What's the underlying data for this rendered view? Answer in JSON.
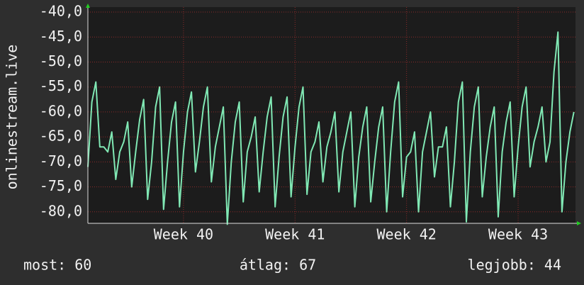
{
  "chart_data": {
    "type": "line",
    "ylabel": "onlinestream.live",
    "xlim": [
      0,
      30.6
    ],
    "xticks": [
      {
        "value": 6,
        "label": "Week 40"
      },
      {
        "value": 13,
        "label": "Week 41"
      },
      {
        "value": 20,
        "label": "Week 42"
      },
      {
        "value": 27,
        "label": "Week 43"
      }
    ],
    "ylim": [
      -82.3,
      -39.0
    ],
    "yticks": [
      {
        "value": -40,
        "label": "-40,0"
      },
      {
        "value": -45,
        "label": "-45,0"
      },
      {
        "value": -50,
        "label": "-50,0"
      },
      {
        "value": -55,
        "label": "-55,0"
      },
      {
        "value": -60,
        "label": "-60,0"
      },
      {
        "value": -65,
        "label": "-65,0"
      },
      {
        "value": -70,
        "label": "-70,0"
      },
      {
        "value": -75,
        "label": "-75,0"
      },
      {
        "value": -80,
        "label": "-80,0"
      }
    ],
    "grid": true,
    "series": [
      {
        "color": "#80e8b4",
        "x": [
          0,
          0.25,
          0.5,
          0.75,
          1,
          1.25,
          1.5,
          1.75,
          2,
          2.25,
          2.5,
          2.75,
          3,
          3.25,
          3.5,
          3.75,
          4,
          4.25,
          4.5,
          4.75,
          5,
          5.25,
          5.5,
          5.75,
          6,
          6.25,
          6.5,
          6.75,
          7,
          7.25,
          7.5,
          7.75,
          8,
          8.25,
          8.5,
          8.75,
          9,
          9.25,
          9.5,
          9.75,
          10,
          10.25,
          10.5,
          10.75,
          11,
          11.25,
          11.5,
          11.75,
          12,
          12.25,
          12.5,
          12.75,
          13,
          13.25,
          13.5,
          13.75,
          14,
          14.25,
          14.5,
          14.75,
          15,
          15.25,
          15.5,
          15.75,
          16,
          16.25,
          16.5,
          16.75,
          17,
          17.25,
          17.5,
          17.75,
          18,
          18.25,
          18.5,
          18.75,
          19,
          19.25,
          19.5,
          19.75,
          20,
          20.25,
          20.5,
          20.75,
          21,
          21.25,
          21.5,
          21.75,
          22,
          22.25,
          22.5,
          22.75,
          23,
          23.25,
          23.5,
          23.75,
          24,
          24.25,
          24.5,
          24.75,
          25,
          25.25,
          25.5,
          25.75,
          26,
          26.25,
          26.5,
          26.75,
          27,
          27.25,
          27.5,
          27.75,
          28,
          28.25,
          28.5,
          28.75,
          29,
          29.25,
          29.5,
          29.75,
          30,
          30.25,
          30.5
        ],
        "values": [
          -71,
          -58,
          -54,
          -67,
          -67,
          -68,
          -64,
          -73.5,
          -68,
          -66,
          -62,
          -75,
          -68,
          -61.5,
          -57.5,
          -77.5,
          -70,
          -59,
          -55,
          -79.5,
          -70,
          -62,
          -58,
          -79,
          -68,
          -60,
          -56,
          -72,
          -66,
          -59,
          -55,
          -74,
          -67,
          -63,
          -59,
          -82.5,
          -70,
          -62,
          -58,
          -78,
          -68,
          -65,
          -61,
          -76,
          -68,
          -61,
          -57,
          -79,
          -69,
          -61,
          -57,
          -77,
          -67,
          -59,
          -55,
          -76.5,
          -68,
          -66,
          -62,
          -74,
          -67,
          -64,
          -60,
          -76,
          -68,
          -64,
          -60,
          -79,
          -69,
          -63,
          -59,
          -78,
          -70,
          -63,
          -59,
          -80,
          -68,
          -58,
          -54,
          -77,
          -69,
          -68,
          -64,
          -80,
          -68,
          -64,
          -60,
          -73,
          -67,
          -67,
          -63,
          -79,
          -70,
          -58,
          -54,
          -82,
          -68,
          -59,
          -55,
          -77,
          -69,
          -63,
          -59,
          -81,
          -68,
          -62,
          -58,
          -77,
          -67,
          -59,
          -55,
          -71,
          -66,
          -63,
          -59,
          -70,
          -66,
          -52,
          -44,
          -80,
          -70,
          -64,
          -60
        ]
      }
    ],
    "legend": [
      "most: 60",
      "átlag: 67",
      "legjobb: 44"
    ]
  }
}
